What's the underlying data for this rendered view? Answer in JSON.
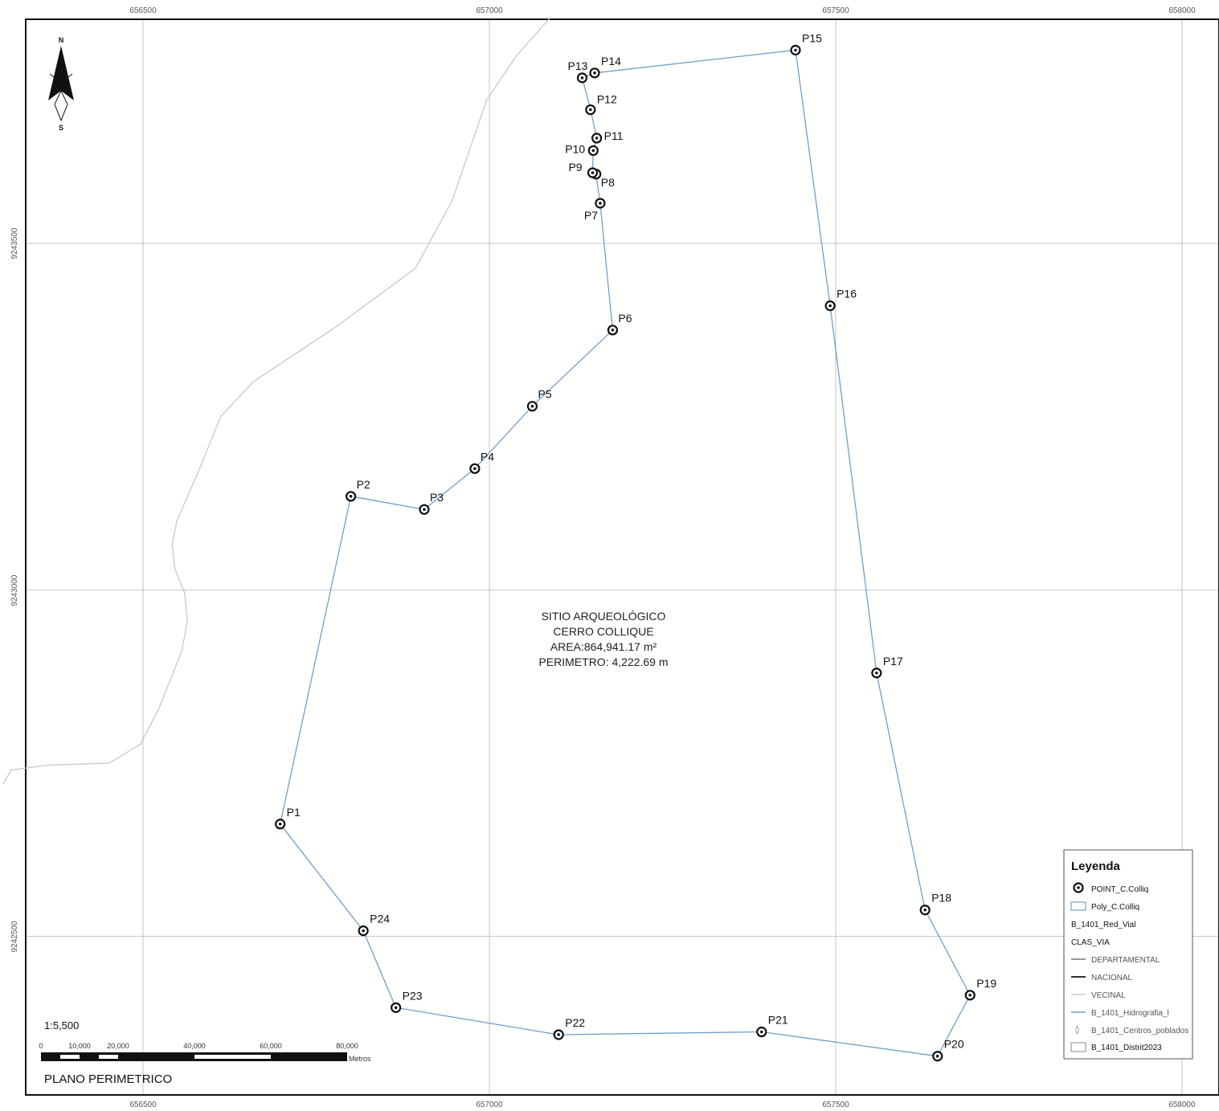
{
  "map": {
    "axis_x_top": [
      "656500",
      "657000",
      "657500",
      "658000"
    ],
    "axis_x_bottom": [
      "656500",
      "657000",
      "657500",
      "658000"
    ],
    "axis_y_left": [
      "9243500",
      "9243000",
      "9242500"
    ],
    "center_label": {
      "line1": "SITIO ARQUEOLÓGICO",
      "line2": "CERRO COLLIQUE",
      "line3": "AREA:864,941.17 m²",
      "line4": "PERIMETRO: 4,222.69 m"
    },
    "points": [
      {
        "name": "P1",
        "x": 656698,
        "y": 9242662
      },
      {
        "name": "P2",
        "x": 656800,
        "y": 9243135
      },
      {
        "name": "P3",
        "x": 656906,
        "y": 9243116
      },
      {
        "name": "P4",
        "x": 656979,
        "y": 9243175
      },
      {
        "name": "P5",
        "x": 657062,
        "y": 9243265
      },
      {
        "name": "P6",
        "x": 657178,
        "y": 9243375
      },
      {
        "name": "P7",
        "x": 657160,
        "y": 9243558
      },
      {
        "name": "P8",
        "x": 657154,
        "y": 9243600
      },
      {
        "name": "P9",
        "x": 657149,
        "y": 9243602
      },
      {
        "name": "P10",
        "x": 657150,
        "y": 9243634
      },
      {
        "name": "P11",
        "x": 657155,
        "y": 9243652
      },
      {
        "name": "P12",
        "x": 657146,
        "y": 9243693
      },
      {
        "name": "P13",
        "x": 657134,
        "y": 9243739
      },
      {
        "name": "P14",
        "x": 657152,
        "y": 9243746
      },
      {
        "name": "P15",
        "x": 657442,
        "y": 9243779
      },
      {
        "name": "P16",
        "x": 657492,
        "y": 9243410
      },
      {
        "name": "P17",
        "x": 657559,
        "y": 9242880
      },
      {
        "name": "P18",
        "x": 657629,
        "y": 9242538
      },
      {
        "name": "P19",
        "x": 657694,
        "y": 9242415
      },
      {
        "name": "P20",
        "x": 657647,
        "y": 9242327
      },
      {
        "name": "P21",
        "x": 657393,
        "y": 9242362
      },
      {
        "name": "P22",
        "x": 657100,
        "y": 9242358
      },
      {
        "name": "P23",
        "x": 656865,
        "y": 9242397
      },
      {
        "name": "P24",
        "x": 656818,
        "y": 9242508
      }
    ],
    "road_vecinal": [
      [
        657089,
        9243827
      ],
      [
        657040,
        9243772
      ],
      [
        656996,
        9243707
      ],
      [
        656946,
        9243561
      ],
      [
        656893,
        9243464
      ],
      [
        656775,
        9243377
      ],
      [
        656660,
        9243301
      ],
      [
        656612,
        9243250
      ],
      [
        656580,
        9243171
      ],
      [
        656549,
        9243100
      ],
      [
        656542,
        9243065
      ],
      [
        656546,
        9243030
      ],
      [
        656560,
        9242996
      ],
      [
        656564,
        9242955
      ],
      [
        656556,
        9242912
      ],
      [
        656523,
        9242829
      ],
      [
        656496,
        9242777
      ],
      [
        656451,
        9242750
      ],
      [
        656363,
        9242747
      ],
      [
        656310,
        9242740
      ],
      [
        656298,
        9242720
      ]
    ]
  },
  "north_arrow": {
    "north": "N",
    "south": "S"
  },
  "scale": {
    "ratio": "1:5,500",
    "ticks": [
      "0",
      "10,000",
      "20,000",
      "40,000",
      "60,000",
      "80,000"
    ],
    "unit": "Metros"
  },
  "map_title": "PLANO PERIMETRICO",
  "legend": {
    "title": "Leyenda",
    "items": [
      {
        "label": "POINT_C.Colliq"
      },
      {
        "label": "Poly_C.Colliq"
      },
      {
        "label": "B_1401_Red_Vial"
      },
      {
        "label": "CLAS_VIA"
      },
      {
        "label": "DEPARTAMENTAL"
      },
      {
        "label": "NACIONAL"
      },
      {
        "label": "VECINAL"
      },
      {
        "label": "B_1401_Hidrografia_l"
      },
      {
        "label": "B_1401_Centros_poblados"
      },
      {
        "label": "B_1401_Distrit2023"
      }
    ]
  },
  "colors": {
    "polygon": "#6f9fc8",
    "road_vecinal": "#c8c8c8",
    "grid": "#b4b4b4",
    "frame": "#111111"
  }
}
